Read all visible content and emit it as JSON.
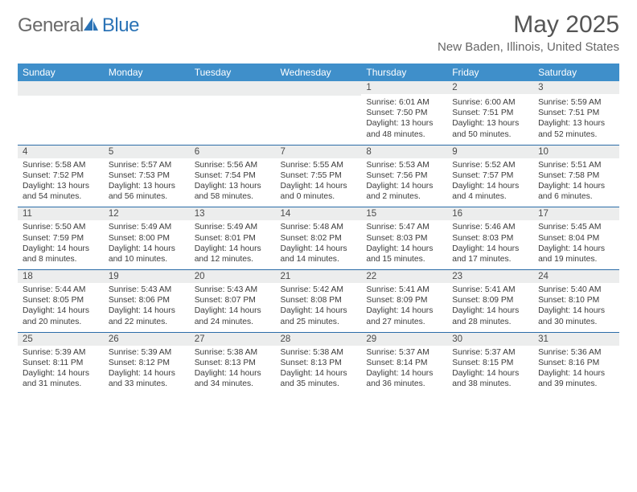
{
  "logo": {
    "general": "General",
    "blue": "Blue"
  },
  "title": "May 2025",
  "location": "New Baden, Illinois, United States",
  "columns": [
    "Sunday",
    "Monday",
    "Tuesday",
    "Wednesday",
    "Thursday",
    "Friday",
    "Saturday"
  ],
  "weeks": [
    [
      null,
      null,
      null,
      null,
      {
        "n": "1",
        "sr": "6:01 AM",
        "ss": "7:50 PM",
        "dl": "13 hours and 48 minutes."
      },
      {
        "n": "2",
        "sr": "6:00 AM",
        "ss": "7:51 PM",
        "dl": "13 hours and 50 minutes."
      },
      {
        "n": "3",
        "sr": "5:59 AM",
        "ss": "7:51 PM",
        "dl": "13 hours and 52 minutes."
      }
    ],
    [
      {
        "n": "4",
        "sr": "5:58 AM",
        "ss": "7:52 PM",
        "dl": "13 hours and 54 minutes."
      },
      {
        "n": "5",
        "sr": "5:57 AM",
        "ss": "7:53 PM",
        "dl": "13 hours and 56 minutes."
      },
      {
        "n": "6",
        "sr": "5:56 AM",
        "ss": "7:54 PM",
        "dl": "13 hours and 58 minutes."
      },
      {
        "n": "7",
        "sr": "5:55 AM",
        "ss": "7:55 PM",
        "dl": "14 hours and 0 minutes."
      },
      {
        "n": "8",
        "sr": "5:53 AM",
        "ss": "7:56 PM",
        "dl": "14 hours and 2 minutes."
      },
      {
        "n": "9",
        "sr": "5:52 AM",
        "ss": "7:57 PM",
        "dl": "14 hours and 4 minutes."
      },
      {
        "n": "10",
        "sr": "5:51 AM",
        "ss": "7:58 PM",
        "dl": "14 hours and 6 minutes."
      }
    ],
    [
      {
        "n": "11",
        "sr": "5:50 AM",
        "ss": "7:59 PM",
        "dl": "14 hours and 8 minutes."
      },
      {
        "n": "12",
        "sr": "5:49 AM",
        "ss": "8:00 PM",
        "dl": "14 hours and 10 minutes."
      },
      {
        "n": "13",
        "sr": "5:49 AM",
        "ss": "8:01 PM",
        "dl": "14 hours and 12 minutes."
      },
      {
        "n": "14",
        "sr": "5:48 AM",
        "ss": "8:02 PM",
        "dl": "14 hours and 14 minutes."
      },
      {
        "n": "15",
        "sr": "5:47 AM",
        "ss": "8:03 PM",
        "dl": "14 hours and 15 minutes."
      },
      {
        "n": "16",
        "sr": "5:46 AM",
        "ss": "8:03 PM",
        "dl": "14 hours and 17 minutes."
      },
      {
        "n": "17",
        "sr": "5:45 AM",
        "ss": "8:04 PM",
        "dl": "14 hours and 19 minutes."
      }
    ],
    [
      {
        "n": "18",
        "sr": "5:44 AM",
        "ss": "8:05 PM",
        "dl": "14 hours and 20 minutes."
      },
      {
        "n": "19",
        "sr": "5:43 AM",
        "ss": "8:06 PM",
        "dl": "14 hours and 22 minutes."
      },
      {
        "n": "20",
        "sr": "5:43 AM",
        "ss": "8:07 PM",
        "dl": "14 hours and 24 minutes."
      },
      {
        "n": "21",
        "sr": "5:42 AM",
        "ss": "8:08 PM",
        "dl": "14 hours and 25 minutes."
      },
      {
        "n": "22",
        "sr": "5:41 AM",
        "ss": "8:09 PM",
        "dl": "14 hours and 27 minutes."
      },
      {
        "n": "23",
        "sr": "5:41 AM",
        "ss": "8:09 PM",
        "dl": "14 hours and 28 minutes."
      },
      {
        "n": "24",
        "sr": "5:40 AM",
        "ss": "8:10 PM",
        "dl": "14 hours and 30 minutes."
      }
    ],
    [
      {
        "n": "25",
        "sr": "5:39 AM",
        "ss": "8:11 PM",
        "dl": "14 hours and 31 minutes."
      },
      {
        "n": "26",
        "sr": "5:39 AM",
        "ss": "8:12 PM",
        "dl": "14 hours and 33 minutes."
      },
      {
        "n": "27",
        "sr": "5:38 AM",
        "ss": "8:13 PM",
        "dl": "14 hours and 34 minutes."
      },
      {
        "n": "28",
        "sr": "5:38 AM",
        "ss": "8:13 PM",
        "dl": "14 hours and 35 minutes."
      },
      {
        "n": "29",
        "sr": "5:37 AM",
        "ss": "8:14 PM",
        "dl": "14 hours and 36 minutes."
      },
      {
        "n": "30",
        "sr": "5:37 AM",
        "ss": "8:15 PM",
        "dl": "14 hours and 38 minutes."
      },
      {
        "n": "31",
        "sr": "5:36 AM",
        "ss": "8:16 PM",
        "dl": "14 hours and 39 minutes."
      }
    ]
  ],
  "labels": {
    "sunrise": "Sunrise: ",
    "sunset": "Sunset: ",
    "daylight": "Daylight: "
  },
  "colors": {
    "header_bg": "#3f8fca",
    "header_text": "#ffffff",
    "day_num_bg": "#eceded",
    "divider": "#2b6ca8",
    "logo_gray": "#6a6a6a",
    "logo_blue": "#2b73b6"
  }
}
